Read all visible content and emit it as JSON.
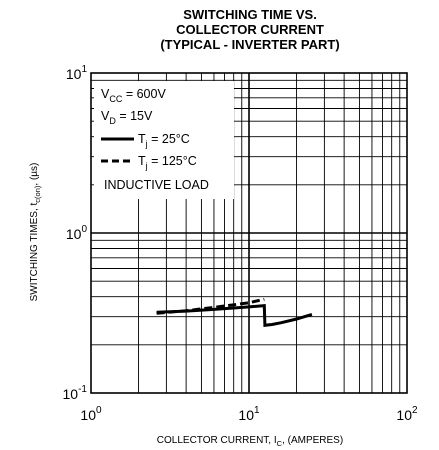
{
  "chart_data": {
    "type": "line",
    "title": [
      "SWITCHING TIME VS.",
      "COLLECTOR CURRENT",
      "(TYPICAL - INVERTER PART)"
    ],
    "xlabel": {
      "main": "COLLECTOR CURRENT, I",
      "sub": "C",
      "rest": ", (AMPERES)"
    },
    "ylabel": {
      "main": "SWITCHING TIMES, t",
      "sub": "c(on)",
      "rest": ", (µs)"
    },
    "x_scale": "log",
    "y_scale": "log",
    "xlim": [
      1,
      100
    ],
    "ylim": [
      0.1,
      10
    ],
    "grid": true,
    "x_ticks": [
      {
        "base": "10",
        "exp": "0"
      },
      {
        "base": "10",
        "exp": "1"
      },
      {
        "base": "10",
        "exp": "2"
      }
    ],
    "y_ticks": [
      {
        "base": "10",
        "exp": "-1"
      },
      {
        "base": "10",
        "exp": "0"
      },
      {
        "base": "10",
        "exp": "1"
      }
    ],
    "legend_placement": "top-left",
    "conditions": [
      {
        "main": "V",
        "sub": "CC",
        "rest": " = 600V"
      },
      {
        "main": "V",
        "sub": "D",
        "rest": " = 15V"
      }
    ],
    "annotation": "INDUCTIVE LOAD",
    "series": [
      {
        "name": {
          "main": "T",
          "sub": "j",
          "rest": " = 25°C"
        },
        "style": "solid",
        "x": [
          2.6,
          4,
          6,
          8,
          10,
          12.5,
          12.6,
          14,
          16,
          20,
          25
        ],
        "y": [
          0.32,
          0.325,
          0.333,
          0.34,
          0.345,
          0.352,
          0.265,
          0.268,
          0.275,
          0.29,
          0.31
        ]
      },
      {
        "name": {
          "main": "T",
          "sub": "j",
          "rest": " = 125°C"
        },
        "style": "dashed",
        "x": [
          2.6,
          4,
          6,
          8,
          10,
          12.5
        ],
        "y": [
          0.315,
          0.327,
          0.343,
          0.356,
          0.367,
          0.385
        ]
      }
    ]
  }
}
